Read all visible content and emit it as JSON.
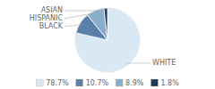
{
  "chart_data": {
    "type": "pie",
    "categories": [
      "WHITE",
      "BLACK",
      "HISPANIC",
      "ASIAN"
    ],
    "values": [
      78.7,
      10.7,
      8.9,
      1.8
    ],
    "value_labels": [
      "78.7%",
      "10.7%",
      "8.9%",
      "1.8%"
    ],
    "colors": [
      "#d9e8f5",
      "#5a7fa8",
      "#8aaec9",
      "#1b3a5c"
    ],
    "legend": "bottom"
  }
}
